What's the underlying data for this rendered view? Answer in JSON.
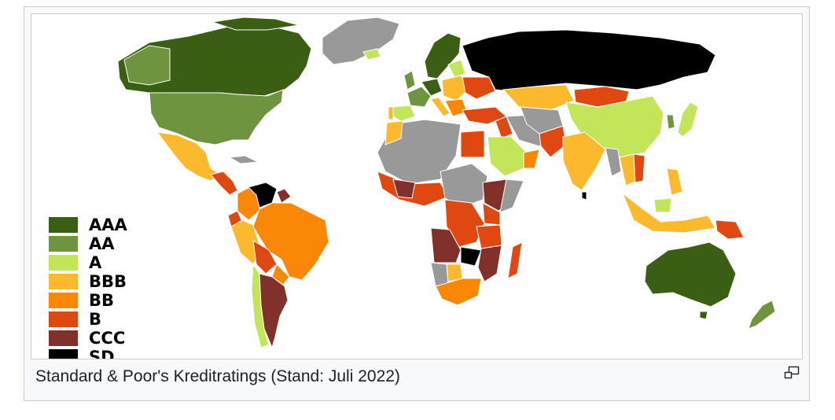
{
  "figure": {
    "caption": "Standard & Poor's Kreditratings (Stand: Juli 2022)",
    "enlarge_icon": "magnify-clip-icon"
  },
  "legend": [
    {
      "rating": "AAA",
      "color": "#3a5e14"
    },
    {
      "rating": "AA",
      "color": "#6e9440"
    },
    {
      "rating": "A",
      "color": "#c2e55a"
    },
    {
      "rating": "BBB",
      "color": "#fdb92e"
    },
    {
      "rating": "BB",
      "color": "#fb8706"
    },
    {
      "rating": "B",
      "color": "#e04812"
    },
    {
      "rating": "CCC",
      "color": "#82302b"
    },
    {
      "rating": "SD",
      "color": "#000000"
    }
  ],
  "colors": {
    "no_rating": "#999999",
    "frame_border": "#c8ccd1",
    "thumb_background": "#f8f9fa"
  },
  "regions": [
    {
      "name": "Kanada",
      "rating": "AAA"
    },
    {
      "name": "USA",
      "rating": "AA"
    },
    {
      "name": "Grönland",
      "rating": "none"
    },
    {
      "name": "Mexiko",
      "rating": "BBB"
    },
    {
      "name": "Venezuela",
      "rating": "SD"
    },
    {
      "name": "Brasilien",
      "rating": "BB"
    },
    {
      "name": "Argentinien",
      "rating": "CCC"
    },
    {
      "name": "Chile",
      "rating": "A"
    },
    {
      "name": "Russland",
      "rating": "SD"
    },
    {
      "name": "China",
      "rating": "A"
    },
    {
      "name": "Indien",
      "rating": "BBB"
    },
    {
      "name": "Australien",
      "rating": "AAA"
    },
    {
      "name": "Saudi-Arabien",
      "rating": "A"
    },
    {
      "name": "Kasachstan",
      "rating": "BBB"
    },
    {
      "name": "Mongolei",
      "rating": "B"
    },
    {
      "name": "Südafrika",
      "rating": "BB"
    },
    {
      "name": "Angola",
      "rating": "CCC"
    },
    {
      "name": "Äthiopien",
      "rating": "CCC"
    },
    {
      "name": "Sambia",
      "rating": "SD"
    },
    {
      "name": "Madagaskar",
      "rating": "B"
    },
    {
      "name": "Ägypten",
      "rating": "B"
    },
    {
      "name": "Deutschland",
      "rating": "AAA"
    },
    {
      "name": "Frankreich",
      "rating": "AA"
    },
    {
      "name": "Spanien",
      "rating": "A"
    },
    {
      "name": "Ukraine",
      "rating": "B"
    },
    {
      "name": "Türkei",
      "rating": "B"
    },
    {
      "name": "Japan",
      "rating": "A"
    },
    {
      "name": "Neuseeland",
      "rating": "AA"
    },
    {
      "name": "Indonesien",
      "rating": "BBB"
    },
    {
      "name": "Papua-Neuguinea",
      "rating": "B"
    }
  ]
}
